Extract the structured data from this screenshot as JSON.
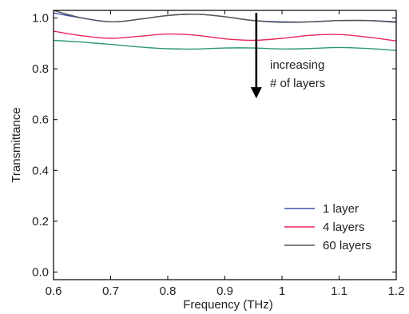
{
  "chart_data": {
    "type": "line",
    "title": "",
    "xlabel": "Frequency (THz)",
    "ylabel": "Transmittance",
    "xlim": [
      0.6,
      1.2
    ],
    "ylim": [
      -0.03,
      1.03
    ],
    "xticks": [
      0.6,
      0.7,
      0.8,
      0.9,
      1.0,
      1.1,
      1.2
    ],
    "xtick_labels": [
      "0.6",
      "0.7",
      "0.8",
      "0.9",
      "1",
      "1.1",
      "1.2"
    ],
    "yticks": [
      0.0,
      0.2,
      0.4,
      0.6,
      0.8,
      1.0
    ],
    "ytick_labels": [
      "0.0",
      "0.2",
      "0.4",
      "0.6",
      "0.8",
      "1.0"
    ],
    "grid": false,
    "legend_position": "bottom-right",
    "annotation": {
      "lines": [
        "increasing",
        "# of layers"
      ],
      "arrow_from": [
        0.955,
        1.02
      ],
      "arrow_to": [
        0.955,
        0.69
      ]
    },
    "series": [
      {
        "name": "1 layer",
        "color": "#3a52b6",
        "x": [
          0.6,
          0.65,
          0.7,
          0.75,
          0.8,
          0.85,
          0.9,
          0.95,
          1.0,
          1.05,
          1.1,
          1.15,
          1.2
        ],
        "y": [
          1.02,
          1.0,
          0.985,
          0.995,
          1.01,
          1.015,
          1.005,
          0.99,
          0.985,
          0.985,
          0.99,
          0.99,
          0.985
        ]
      },
      {
        "name": "4 layers",
        "color": "#e8285a",
        "x": [
          0.6,
          0.65,
          0.7,
          0.75,
          0.8,
          0.85,
          0.9,
          0.95,
          1.0,
          1.05,
          1.1,
          1.15,
          1.2
        ],
        "y": [
          0.948,
          0.93,
          0.92,
          0.928,
          0.937,
          0.932,
          0.918,
          0.912,
          0.92,
          0.932,
          0.935,
          0.925,
          0.91
        ]
      },
      {
        "name": "60 layers",
        "color": "#555555",
        "x": [
          0.6,
          0.65,
          0.7,
          0.75,
          0.8,
          0.85,
          0.9,
          0.95,
          1.0,
          1.05,
          1.1,
          1.15,
          1.2
        ],
        "y": [
          1.03,
          1.0,
          0.985,
          0.995,
          1.01,
          1.015,
          1.005,
          0.99,
          0.983,
          0.985,
          0.99,
          0.99,
          0.983
        ]
      },
      {
        "name": "",
        "color": "#2b9a6a",
        "x": [
          0.6,
          0.65,
          0.7,
          0.75,
          0.8,
          0.85,
          0.9,
          0.95,
          1.0,
          1.05,
          1.1,
          1.15,
          1.2
        ],
        "y": [
          0.912,
          0.905,
          0.896,
          0.886,
          0.879,
          0.878,
          0.882,
          0.882,
          0.878,
          0.88,
          0.884,
          0.88,
          0.872
        ]
      }
    ]
  }
}
